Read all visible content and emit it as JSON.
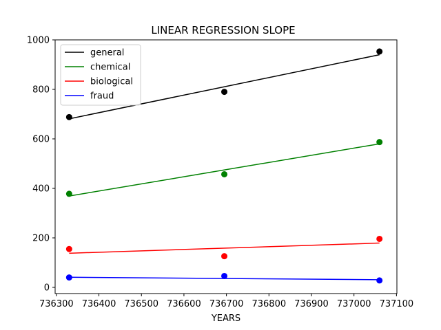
{
  "chart_data": {
    "type": "scatter",
    "title": "LINEAR REGRESSION SLOPE",
    "xlabel": "YEARS",
    "ylabel": "",
    "xlim": [
      736297,
      737101
    ],
    "ylim": [
      -25,
      1000
    ],
    "xticks": [
      736300,
      736400,
      736500,
      736600,
      736700,
      736800,
      736900,
      737000,
      737100
    ],
    "yticks": [
      0,
      200,
      400,
      600,
      800,
      1000
    ],
    "grid": false,
    "legend_position": "top-left",
    "x": [
      736330,
      736695,
      737060
    ],
    "series": [
      {
        "name": "general",
        "color": "#000000",
        "points": [
          688,
          790,
          953
        ],
        "fit_line": [
          681,
          940
        ]
      },
      {
        "name": "chemical",
        "color": "#008000",
        "points": [
          378,
          457,
          587
        ],
        "fit_line": [
          369,
          580
        ]
      },
      {
        "name": "biological",
        "color": "#ff0000",
        "points": [
          155,
          126,
          196
        ],
        "fit_line": [
          138,
          179
        ]
      },
      {
        "name": "fraud",
        "color": "#0000ff",
        "points": [
          40,
          46,
          28
        ],
        "fit_line": [
          41,
          31
        ]
      }
    ]
  }
}
